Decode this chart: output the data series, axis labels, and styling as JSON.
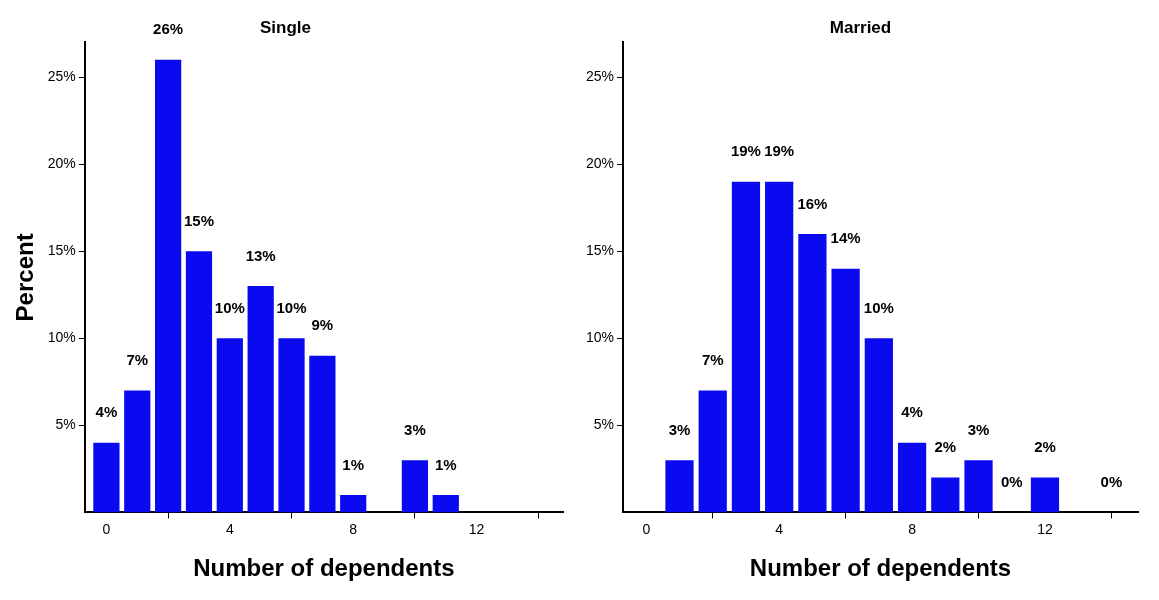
{
  "chart_data": [
    {
      "type": "bar",
      "title": "Single",
      "xlabel": "Number of dependents",
      "ylabel": "Percent",
      "x": [
        0,
        1,
        2,
        3,
        4,
        5,
        6,
        7,
        8,
        10,
        11
      ],
      "values": [
        4,
        7,
        26,
        15,
        10,
        13,
        10,
        9,
        1,
        3,
        1
      ],
      "value_labels": [
        "4%",
        "7%",
        "26%",
        "15%",
        "10%",
        "13%",
        "10%",
        "9%",
        "1%",
        "3%",
        "1%"
      ],
      "color": "#0a0af0",
      "xlim": [
        -0.7,
        14.8
      ],
      "xticks": [
        0,
        4,
        8,
        12
      ],
      "ylim": [
        0,
        27
      ],
      "yticks": [
        {
          "value": 5,
          "label": "5%"
        },
        {
          "value": 10,
          "label": "10%"
        },
        {
          "value": 15,
          "label": "15%"
        },
        {
          "value": 20,
          "label": "20%"
        },
        {
          "value": 25,
          "label": "25%"
        }
      ],
      "legend": false
    },
    {
      "type": "bar",
      "title": "Married",
      "xlabel": "Number of dependents",
      "x": [
        1,
        2,
        3,
        4,
        5,
        6,
        7,
        8,
        9,
        10,
        11,
        12,
        14
      ],
      "values": [
        3,
        7,
        19,
        19,
        16,
        14,
        10,
        4,
        2,
        3,
        0,
        2,
        0
      ],
      "value_labels": [
        "3%",
        "7%",
        "19%",
        "19%",
        "16%",
        "14%",
        "10%",
        "4%",
        "2%",
        "3%",
        "0%",
        "2%",
        "0%"
      ],
      "color": "#0a0af0",
      "xlim": [
        -0.7,
        14.8
      ],
      "xticks": [
        0,
        4,
        8,
        12
      ],
      "ylim": [
        0,
        27
      ],
      "yticks": [
        {
          "value": 5,
          "label": "5%"
        },
        {
          "value": 10,
          "label": "10%"
        },
        {
          "value": 15,
          "label": "15%"
        },
        {
          "value": 20,
          "label": "20%"
        },
        {
          "value": 25,
          "label": "25%"
        }
      ],
      "legend": false
    }
  ]
}
